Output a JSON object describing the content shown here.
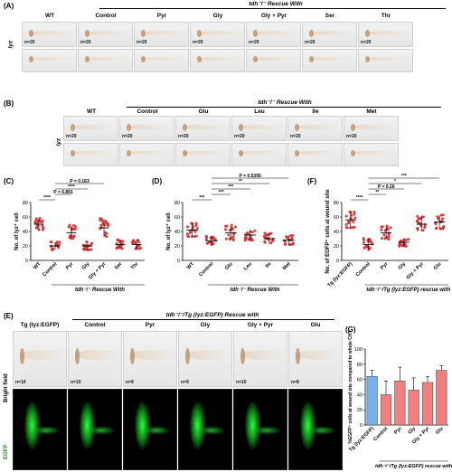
{
  "panelA": {
    "label": "(A)",
    "header": "tdh⁻/⁻ Rescue With",
    "wt": "WT",
    "groups": [
      "Control",
      "Pyr",
      "Gly",
      "Gly + Pyr",
      "Ser",
      "Thr"
    ],
    "row_label": "lyz",
    "n": [
      "n=20",
      "n=20",
      "n=20",
      "n=20",
      "n=20",
      "n=20",
      "n=20"
    ]
  },
  "panelB": {
    "label": "(B)",
    "header": "tdh⁻/⁻ Rescue With",
    "wt": "WT",
    "groups": [
      "Control",
      "Glu",
      "Leu",
      "Ile",
      "Met"
    ],
    "row_label": "lyz",
    "n": [
      "n=20",
      "n=20",
      "n=20",
      "n=20",
      "n=20",
      "n=20"
    ]
  },
  "panelC": {
    "label": "(C)",
    "ylabel": "No. of lyz⁺ cell",
    "xcaption": "tdh⁻/⁻ Rescue With",
    "sig": [
      "****",
      "P = 0.891",
      "****",
      "P = 0.163"
    ],
    "colors": {
      "WT": "#e53935",
      "Control": "#e53935",
      "Pyr": "#e53935",
      "Gly": "#e53935",
      "Gly + Pyr": "#e53935",
      "Ser": "#e53935",
      "Thr": "#e53935"
    }
  },
  "panelD": {
    "label": "(D)",
    "ylabel": "No. of lyz⁺ cell",
    "xcaption": "tdh⁻/⁻ Rescue With",
    "sig": [
      "***",
      "***",
      "***",
      "**",
      "P = 0.5395"
    ]
  },
  "panelF": {
    "label": "(F)",
    "ylabel": "No. of EGFP⁺ cells at wound site",
    "xcaption": "tdh⁻/⁻/Tg (lyz:EGFP) rescue with",
    "sig": [
      "****",
      "**",
      "P = 0.26",
      "*",
      "***"
    ]
  },
  "panelE": {
    "label": "(E)",
    "header": "tdh⁻/⁻/Tg (lyz:EGFP) Rescue with",
    "first": "Tg (lyz:EGFP)",
    "groups": [
      "Control",
      "Pyr",
      "Gly",
      "Gly + Pyr",
      "Glu"
    ],
    "row1": "Bright field",
    "row2": "EGFP",
    "n": [
      "n=10",
      "n=10",
      "n=9",
      "n=9",
      "n=10",
      "n=8"
    ]
  },
  "panelG": {
    "label": "(G)",
    "ylabel": "%EGFP⁺ cells at wound site compared to whole CHT",
    "xcaption": "tdh⁻/⁻/Tg (lyz:EGFP) rescue with",
    "ytick_labels": [
      "0",
      "20",
      "40",
      "60",
      "80",
      "100"
    ],
    "colors": {
      "tg": "#7ab0ea",
      "rescue": "#f08080"
    }
  },
  "chart_data": [
    {
      "type": "scatter",
      "panel": "C",
      "ylabel": "No. of lyz⁺ cell",
      "categories": [
        "WT",
        "Control",
        "Pyr",
        "Gly",
        "Gly + Pyr",
        "Ser",
        "Thr"
      ],
      "ylim": [
        0,
        80
      ],
      "yticks": [
        0,
        20,
        40,
        60,
        80
      ],
      "means": [
        50,
        20,
        38,
        20,
        45,
        22,
        22
      ],
      "sd": [
        8,
        5,
        10,
        6,
        12,
        6,
        6
      ]
    },
    {
      "type": "scatter",
      "panel": "D",
      "ylabel": "No. of lyz⁺ cell",
      "categories": [
        "WT",
        "Control",
        "Glu",
        "Leu",
        "Ile",
        "Met"
      ],
      "ylim": [
        0,
        80
      ],
      "yticks": [
        0,
        20,
        40,
        60,
        80
      ],
      "means": [
        42,
        27,
        38,
        35,
        30,
        28
      ],
      "sd": [
        10,
        6,
        10,
        8,
        7,
        6
      ]
    },
    {
      "type": "scatter",
      "panel": "F",
      "ylabel": "No. of EGFP⁺ cells at wound site",
      "categories": [
        "Tg (lyz:EGFP)",
        "Control",
        "Pyr",
        "Gly",
        "Gly + Pyr",
        "Glu"
      ],
      "ylim": [
        0,
        80
      ],
      "yticks": [
        0,
        20,
        40,
        60,
        80
      ],
      "means": [
        56,
        22,
        38,
        25,
        50,
        53
      ],
      "sd": [
        12,
        8,
        9,
        6,
        10,
        9
      ]
    },
    {
      "type": "bar",
      "panel": "G",
      "ylabel": "%EGFP⁺ cells at wound site compared to whole CHT",
      "categories": [
        "Tg (lyz:EGFP)",
        "Control",
        "Pyr",
        "Gly",
        "Gly + Pyr",
        "Glu"
      ],
      "values": [
        64,
        40,
        58,
        46,
        56,
        72
      ],
      "errors": [
        8,
        18,
        18,
        16,
        8,
        6
      ],
      "ylim": [
        0,
        100
      ],
      "yticks": [
        0,
        20,
        40,
        60,
        80,
        100
      ]
    }
  ]
}
